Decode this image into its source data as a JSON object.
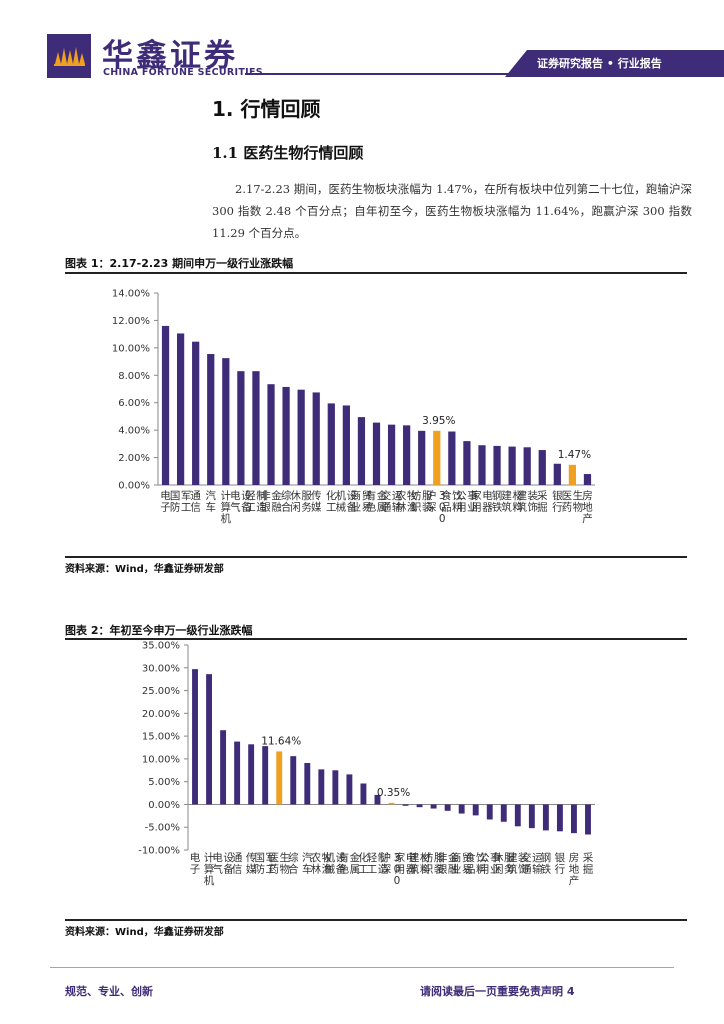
{
  "header": {
    "logo_cn": "华鑫证券",
    "logo_en": "CHINA FORTUNE SECURITIES",
    "report_type": "证券研究报告 • 行业报告"
  },
  "section": {
    "h1": "1.  行情回顾",
    "h2": "1.1 医药生物行情回顾",
    "paragraph": "2.17-2.23 期间，医药生物板块涨幅为 1.47%，在所有板块中位列第二十七位，跑输沪深 300 指数 2.48 个百分点；自年初至今，医药生物板块涨幅为 11.64%，跑赢沪深 300 指数 11.29 个百分点。"
  },
  "figure1": {
    "title": "图表 1：2.17-2.23 期间申万一级行业涨跌幅",
    "source": "资料来源：Wind，华鑫证券研发部"
  },
  "figure2": {
    "title": "图表 2：年初至今申万一级行业涨跌幅",
    "source": "资料来源：Wind，华鑫证券研发部"
  },
  "footer": {
    "left": "规范、专业、创新",
    "right": "请阅读最后一页重要免责声明 4"
  },
  "colors": {
    "brand": "#3f2c78",
    "highlight": "#f0a020",
    "bar": "#3f2c78"
  },
  "chart_data": [
    {
      "type": "bar",
      "title": "2.17-2.23期间申万一级行业涨跌幅",
      "ylim": [
        0,
        14
      ],
      "yticks": [
        "0.00%",
        "2.00%",
        "4.00%",
        "6.00%",
        "8.00%",
        "10.00%",
        "12.00%",
        "14.00%"
      ],
      "categories": [
        "电子",
        "国防军工",
        "通信",
        "汽车",
        "计算机",
        "电气设备",
        "轻工制造",
        "非银金融",
        "综合",
        "休闲服务",
        "传媒",
        "化工",
        "机械设备",
        "商业贸易",
        "有色金属",
        "交通运输",
        "农林牧渔",
        "纺织服装",
        "沪深300",
        "食品饮料",
        "公用事业",
        "家用电器",
        "钢铁",
        "建筑材料",
        "建筑装饰",
        "采掘",
        "银行",
        "医药生物",
        "房地产"
      ],
      "labels": [
        "电子",
        "国防军工",
        "通信",
        "汽车",
        "计算机",
        "电气设备",
        "轻工制造",
        "非银金融",
        "综合",
        "休闲服务",
        "传媒",
        "化工",
        "机械设备",
        "商业贸易",
        "有色金属",
        "交通运输",
        "农林牧渔",
        "纺织服装",
        "沪深300",
        "食品饮料",
        "公用事业",
        "家用电器",
        "钢铁",
        "建筑材料",
        "建筑装饰",
        "采掘",
        "银行",
        "医药生物",
        "房地产"
      ],
      "values": [
        11.6,
        11.05,
        10.45,
        9.55,
        9.25,
        8.3,
        8.3,
        7.35,
        7.15,
        6.95,
        6.75,
        5.95,
        5.8,
        4.95,
        4.55,
        4.4,
        4.35,
        3.95,
        3.95,
        3.9,
        3.2,
        2.9,
        2.85,
        2.8,
        2.75,
        2.55,
        1.55,
        1.47,
        0.8
      ],
      "highlight": [
        "沪深300",
        "医药生物"
      ],
      "data_labels": [
        {
          "category": "沪深300",
          "text": "3.95%"
        },
        {
          "category": "医药生物",
          "text": "1.47%"
        }
      ]
    },
    {
      "type": "bar",
      "title": "年初至今申万一级行业涨跌幅",
      "ylim": [
        -10,
        35
      ],
      "yticks": [
        "-10.00%",
        "-5.00%",
        "0.00%",
        "5.00%",
        "10.00%",
        "15.00%",
        "20.00%",
        "25.00%",
        "30.00%",
        "35.00%"
      ],
      "categories": [
        "电子",
        "计算机",
        "电气设备",
        "通信",
        "传媒",
        "国防军工",
        "医药生物",
        "综合",
        "汽车",
        "农林牧渔",
        "机械设备",
        "有色金属",
        "化工",
        "轻工制造",
        "沪深300",
        "家用电器",
        "建筑材料",
        "纺织服装",
        "非银金融",
        "商业贸易",
        "食品饮料",
        "公用事业",
        "休闲服务",
        "建筑装饰",
        "交通运输",
        "钢铁",
        "银行",
        "房地产",
        "采掘"
      ],
      "labels": [
        "电子",
        "计算机",
        "电气设备",
        "通信",
        "传媒",
        "国防军工",
        "医药生物",
        "综合",
        "汽车",
        "农林牧渔",
        "机械设备",
        "有色金属",
        "化工",
        "轻工制造",
        "沪深300",
        "家用电器",
        "建筑材料",
        "纺织服装",
        "非银金融",
        "商业贸易",
        "食品饮料",
        "公用事业",
        "休闲服务",
        "建筑装饰",
        "交通运输",
        "钢铁",
        "银行",
        "房地产",
        "采掘"
      ],
      "values": [
        29.7,
        28.6,
        16.3,
        13.8,
        13.2,
        12.8,
        11.64,
        10.6,
        9.1,
        7.7,
        7.5,
        6.6,
        4.6,
        2.1,
        0.35,
        -0.3,
        -0.6,
        -0.9,
        -1.4,
        -2.0,
        -2.4,
        -3.3,
        -3.8,
        -4.8,
        -5.2,
        -5.7,
        -5.9,
        -6.3,
        -6.6
      ],
      "highlight": [
        "医药生物",
        "沪深300"
      ],
      "data_labels": [
        {
          "category": "医药生物",
          "text": "11.64%"
        },
        {
          "category": "沪深300",
          "text": "0.35%"
        }
      ]
    }
  ]
}
